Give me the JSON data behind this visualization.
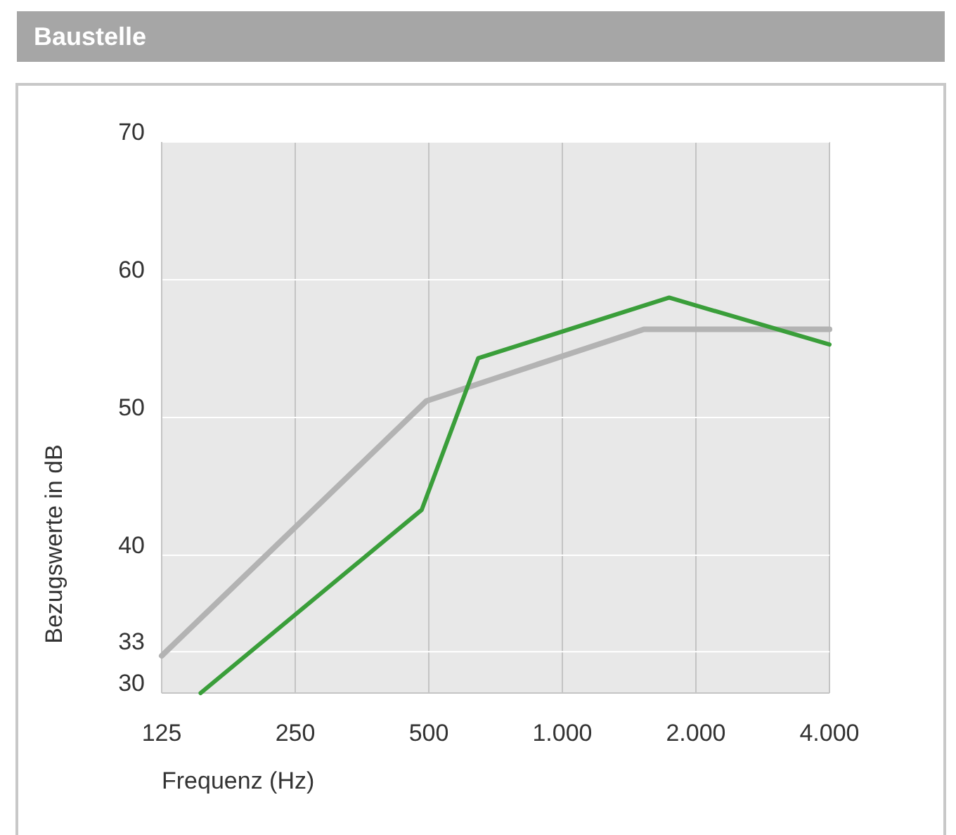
{
  "chart_data": {
    "type": "line",
    "title": "Baustelle",
    "xlabel": "Frequenz (Hz)",
    "ylabel": "Bezugswerte in dB",
    "log": "x",
    "xlim": [
      125,
      4000
    ],
    "ylim": [
      30,
      70
    ],
    "xticks": [
      {
        "value": 125,
        "label": "125"
      },
      {
        "value": 250,
        "label": "250"
      },
      {
        "value": 500,
        "label": "500"
      },
      {
        "value": 1000,
        "label": "1.000"
      },
      {
        "value": 2000,
        "label": "2.000"
      },
      {
        "value": 4000,
        "label": "4.000"
      }
    ],
    "yticks": [
      30,
      33,
      40,
      50,
      60,
      70
    ],
    "grid": true,
    "line_style": "solid",
    "marker": "none",
    "series": [
      {
        "color": "#b3b3b3",
        "x": [
          125,
          494,
          1527,
          4000
        ],
        "values": [
          32.7,
          51.2,
          56.4,
          56.4
        ]
      },
      {
        "color": "#3a9e3a",
        "x": [
          153,
          482,
          646,
          1741,
          4000
        ],
        "values": [
          30,
          43.3,
          54.3,
          58.7,
          55.3
        ]
      }
    ]
  }
}
